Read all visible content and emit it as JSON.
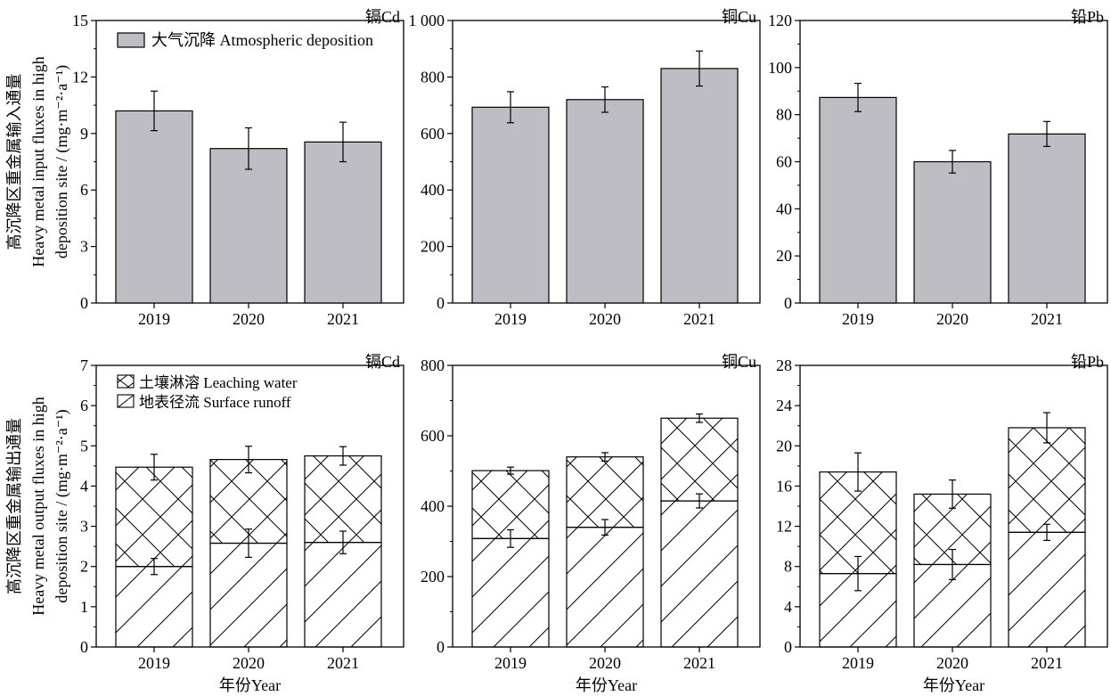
{
  "chart_data": [
    {
      "id": "cd-input",
      "type": "bar",
      "panel_label": "镉Cd",
      "categories": [
        "2019",
        "2020",
        "2021"
      ],
      "series": [
        {
          "name": "大气沉降 Atmospheric deposition",
          "values": [
            10.2,
            8.2,
            8.55
          ],
          "errors": [
            1.05,
            1.1,
            1.05
          ]
        }
      ],
      "ylim": [
        0,
        15
      ],
      "yticks": [
        0,
        3,
        6,
        9,
        12,
        15
      ],
      "ytick_labels": [
        "0",
        "3",
        "6",
        "9",
        "12",
        "15"
      ],
      "ylabel_cn": "高沉降区重金属输入通量",
      "ylabel_en1": "Heavy metal input fluxes in high",
      "ylabel_en2": "deposition site / (mg·m⁻²·a⁻¹)",
      "legend": [
        "大气沉降 Atmospheric deposition"
      ]
    },
    {
      "id": "cu-input",
      "type": "bar",
      "panel_label": "铜Cu",
      "categories": [
        "2019",
        "2020",
        "2021"
      ],
      "series": [
        {
          "name": "大气沉降 Atmospheric deposition",
          "values": [
            693,
            720,
            830
          ],
          "errors": [
            55,
            45,
            62
          ]
        }
      ],
      "ylim": [
        0,
        1000
      ],
      "yticks": [
        0,
        200,
        400,
        600,
        800,
        1000
      ],
      "ytick_labels": [
        "0",
        "200",
        "400",
        "600",
        "800",
        "1 000"
      ]
    },
    {
      "id": "pb-input",
      "type": "bar",
      "panel_label": "铅Pb",
      "categories": [
        "2019",
        "2020",
        "2021"
      ],
      "series": [
        {
          "name": "大气沉降 Atmospheric deposition",
          "values": [
            87.3,
            60.0,
            71.8
          ],
          "errors": [
            6.0,
            4.8,
            5.3
          ]
        }
      ],
      "ylim": [
        0,
        120
      ],
      "yticks": [
        0,
        20,
        40,
        60,
        80,
        100,
        120
      ],
      "ytick_labels": [
        "0",
        "20",
        "40",
        "60",
        "80",
        "100",
        "120"
      ]
    },
    {
      "id": "cd-output",
      "type": "bar",
      "stacked": true,
      "panel_label": "镉Cd",
      "categories": [
        "2019",
        "2020",
        "2021"
      ],
      "series": [
        {
          "name": "地表径流 Surface runoff",
          "values": [
            2.0,
            2.58,
            2.6
          ],
          "errors": [
            0.2,
            0.35,
            0.28
          ]
        },
        {
          "name": "土壤淋溶 Leaching water",
          "values": [
            2.47,
            2.08,
            2.15
          ],
          "errors": [
            0.32,
            0.33,
            0.23
          ]
        }
      ],
      "ylim": [
        0,
        7
      ],
      "yticks": [
        0,
        1,
        2,
        3,
        4,
        5,
        6,
        7
      ],
      "ytick_labels": [
        "0",
        "1",
        "2",
        "3",
        "4",
        "5",
        "6",
        "7"
      ],
      "ylabel_cn": "高沉降区重金属输出通量",
      "ylabel_en1": "Heavy metal output fluxes in high",
      "ylabel_en2": "deposition site / (mg·m⁻²·a⁻¹)",
      "legend": [
        "土壤淋溶 Leaching water",
        "地表径流 Surface runoff"
      ]
    },
    {
      "id": "cu-output",
      "type": "bar",
      "stacked": true,
      "panel_label": "铜Cu",
      "categories": [
        "2019",
        "2020",
        "2021"
      ],
      "series": [
        {
          "name": "地表径流 Surface runoff",
          "values": [
            308,
            340,
            415
          ],
          "errors": [
            25,
            22,
            20
          ]
        },
        {
          "name": "土壤淋溶 Leaching water",
          "values": [
            193,
            200,
            235
          ],
          "errors": [
            10,
            12,
            12
          ]
        }
      ],
      "ylim": [
        0,
        800
      ],
      "yticks": [
        0,
        200,
        400,
        600,
        800
      ],
      "ytick_labels": [
        "0",
        "200",
        "400",
        "600",
        "800"
      ]
    },
    {
      "id": "pb-output",
      "type": "bar",
      "stacked": true,
      "panel_label": "铅Pb",
      "categories": [
        "2019",
        "2020",
        "2021"
      ],
      "series": [
        {
          "name": "地表径流 Surface runoff",
          "values": [
            7.3,
            8.2,
            11.4
          ],
          "errors": [
            1.7,
            1.5,
            0.8
          ]
        },
        {
          "name": "土壤淋溶 Leaching water",
          "values": [
            10.1,
            7.0,
            10.4
          ],
          "errors": [
            1.9,
            1.4,
            1.5
          ]
        }
      ],
      "ylim": [
        0,
        28
      ],
      "yticks": [
        0,
        4,
        8,
        12,
        16,
        20,
        24,
        28
      ],
      "ytick_labels": [
        "0",
        "4",
        "8",
        "12",
        "16",
        "20",
        "24",
        "28"
      ]
    }
  ],
  "xlabel": "年份Year"
}
